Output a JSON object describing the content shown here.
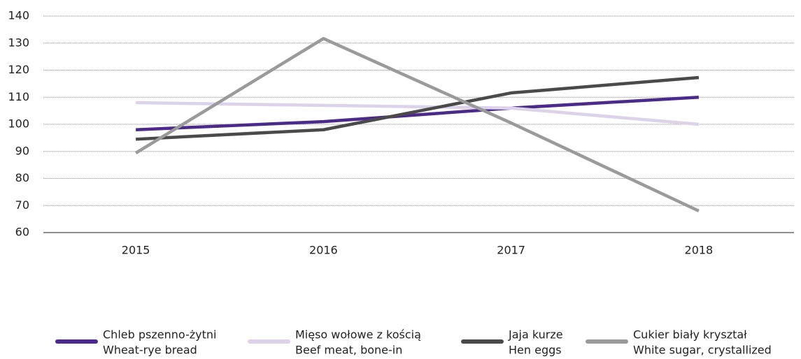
{
  "chart_data": {
    "type": "line",
    "categories": [
      "2015",
      "2016",
      "2017",
      "2018"
    ],
    "series": [
      {
        "name": "Chleb pszenno-żytni",
        "name_en": "Wheat-rye bread",
        "color": "#4b2a8c",
        "values": [
          98,
          101,
          106,
          110
        ]
      },
      {
        "name": "Mięso wołowe z kością",
        "name_en": "Beef meat, bone-in",
        "color": "#dcd3ea",
        "values": [
          108,
          107,
          106,
          100
        ]
      },
      {
        "name": "Jaja kurze",
        "name_en": "Hen eggs",
        "color": "#4a4a4a",
        "values": [
          94.5,
          98,
          111.6,
          117.3
        ]
      },
      {
        "name": "Cukier biały kryształ",
        "name_en": "White sugar, crystallized",
        "color": "#9a9a9a",
        "values": [
          89.4,
          131.7,
          100.5,
          68
        ]
      }
    ],
    "ylim": [
      60,
      140
    ],
    "yticks": [
      60,
      70,
      80,
      90,
      100,
      110,
      120,
      130,
      140
    ],
    "grid": true,
    "legend": "bottom"
  }
}
